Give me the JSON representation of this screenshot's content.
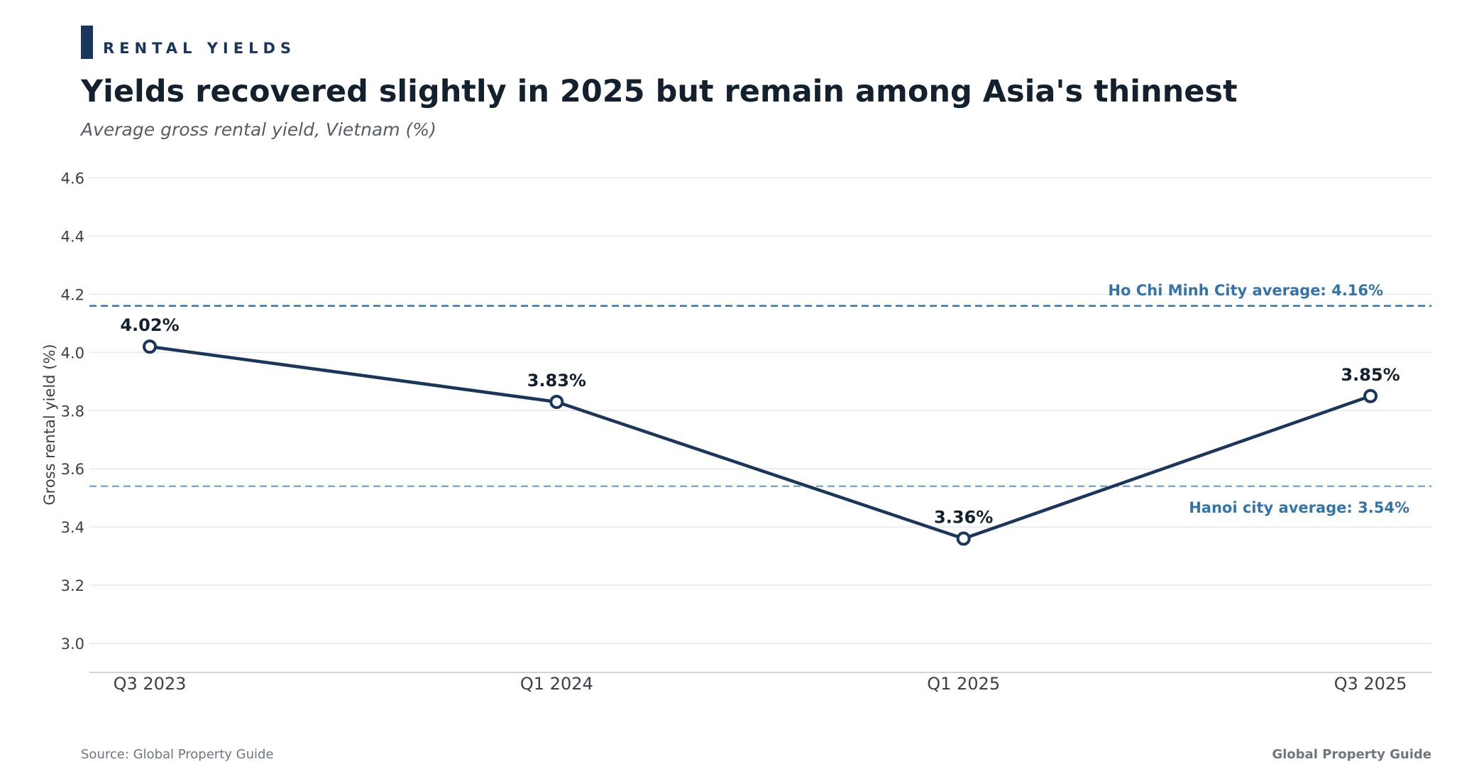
{
  "kicker": "RENTAL YIELDS",
  "title": "Yields recovered slightly in 2025 but remain among Asia's thinnest",
  "subtitle": "Average gross rental yield, Vietnam (%)",
  "source": "Source: Global Property Guide",
  "brand": "Global Property Guide",
  "colors": {
    "line": "#1b365d",
    "hcmc_ref": "#3574a8",
    "hanoi_ref": "#7ea8cc",
    "annotation": "#3574a8",
    "grid": "#e6e8eb"
  },
  "chart_data": {
    "type": "line",
    "categories": [
      "Q3 2023",
      "Q1 2024",
      "Q1 2025",
      "Q3 2025"
    ],
    "series": [
      {
        "values": [
          4.02,
          3.83,
          3.36,
          3.85
        ],
        "labels": [
          "4.02%",
          "3.83%",
          "3.36%",
          "3.85%"
        ]
      }
    ],
    "ylabel": "Gross rental yield (%)",
    "ylim": [
      2.9,
      4.65
    ],
    "yticks": [
      3.0,
      3.2,
      3.4,
      3.6,
      3.8,
      4.0,
      4.2,
      4.4,
      4.6
    ],
    "ytick_labels": [
      "3.0",
      "3.2",
      "3.4",
      "3.6",
      "3.8",
      "4.0",
      "4.2",
      "4.4",
      "4.6"
    ],
    "grid": true,
    "reference_lines": [
      {
        "value": 4.16,
        "label": "Ho Chi Minh City average: 4.16%",
        "style": "dashed",
        "label_position": "above"
      },
      {
        "value": 3.54,
        "label": "Hanoi city average: 3.54%",
        "style": "dashed",
        "label_position": "below"
      }
    ]
  }
}
